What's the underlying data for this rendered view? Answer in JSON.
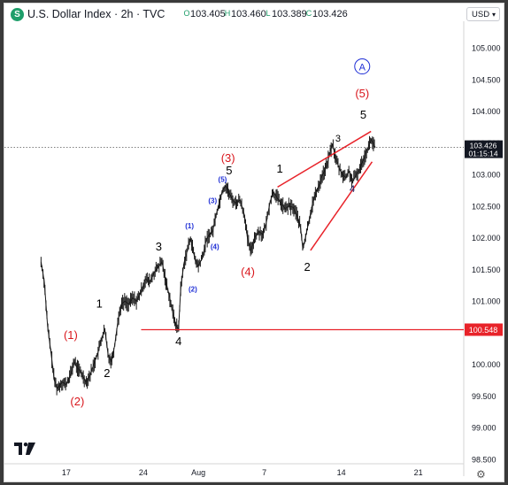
{
  "header": {
    "symbol_icon": "S",
    "title": "U.S. Dollar Index · 2h · TVC",
    "ohlc": [
      {
        "letter": "O",
        "value": "103.405"
      },
      {
        "letter": "H",
        "value": "103.460"
      },
      {
        "letter": "L",
        "value": "103.389"
      },
      {
        "letter": "C",
        "value": "103.426"
      }
    ],
    "currency": "USD"
  },
  "colors": {
    "bull": "#1e9e6a",
    "candle": "#1a1a1a",
    "trend": "#e8232a",
    "label_red": "#d9161c",
    "label_blue": "#1f2fd6",
    "label_black": "#000000",
    "price_tag": "#131722",
    "level_tag": "#e8232a"
  },
  "chart_data": {
    "type": "line",
    "title": "U.S. Dollar Index · 2h · TVC",
    "x_axis": {
      "ticks": [
        {
          "label": "17",
          "x": 0.8
        },
        {
          "label": "24",
          "x": 7.8
        },
        {
          "label": "Aug",
          "x": 12.8
        },
        {
          "label": "7",
          "x": 18.8
        },
        {
          "label": "14",
          "x": 25.8
        },
        {
          "label": "21",
          "x": 32.8
        }
      ]
    },
    "y_axis": {
      "range": [
        98.5,
        105.5
      ],
      "ticks": [
        "105.000",
        "104.500",
        "104.000",
        "103.500",
        "103.000",
        "102.500",
        "102.000",
        "101.500",
        "101.000",
        "100.500",
        "100.000",
        "99.500",
        "99.000",
        "98.500"
      ]
    },
    "price_path": [
      [
        -1.5,
        101.62
      ],
      [
        -1.2,
        101.3
      ],
      [
        -0.9,
        100.6
      ],
      [
        -0.6,
        100.2
      ],
      [
        -0.3,
        99.75
      ],
      [
        0.0,
        99.62
      ],
      [
        0.4,
        99.72
      ],
      [
        0.8,
        99.68
      ],
      [
        1.2,
        99.85
      ],
      [
        1.5,
        100.05
      ],
      [
        1.8,
        99.95
      ],
      [
        2.2,
        99.85
      ],
      [
        2.6,
        99.72
      ],
      [
        3.0,
        99.85
      ],
      [
        3.3,
        100.0
      ],
      [
        3.7,
        100.2
      ],
      [
        4.0,
        100.4
      ],
      [
        4.3,
        100.55
      ],
      [
        4.6,
        100.15
      ],
      [
        4.9,
        100.05
      ],
      [
        5.2,
        100.3
      ],
      [
        5.5,
        100.7
      ],
      [
        5.8,
        100.95
      ],
      [
        6.1,
        101.0
      ],
      [
        6.5,
        100.95
      ],
      [
        6.8,
        101.05
      ],
      [
        7.2,
        101.0
      ],
      [
        7.6,
        101.15
      ],
      [
        8.0,
        101.35
      ],
      [
        8.4,
        101.3
      ],
      [
        8.8,
        101.45
      ],
      [
        9.2,
        101.55
      ],
      [
        9.5,
        101.62
      ],
      [
        9.8,
        101.35
      ],
      [
        10.2,
        101.05
      ],
      [
        10.5,
        100.8
      ],
      [
        10.8,
        100.6
      ],
      [
        11.0,
        100.55
      ],
      [
        11.2,
        101.2
      ],
      [
        11.5,
        101.6
      ],
      [
        11.8,
        101.8
      ],
      [
        12.1,
        102.0
      ],
      [
        12.5,
        101.65
      ],
      [
        12.8,
        101.55
      ],
      [
        13.2,
        101.7
      ],
      [
        13.5,
        101.95
      ],
      [
        13.8,
        102.05
      ],
      [
        14.1,
        102.1
      ],
      [
        14.4,
        102.35
      ],
      [
        14.7,
        102.55
      ],
      [
        15.0,
        102.75
      ],
      [
        15.3,
        102.82
      ],
      [
        15.6,
        102.7
      ],
      [
        15.9,
        102.6
      ],
      [
        16.2,
        102.55
      ],
      [
        16.6,
        102.6
      ],
      [
        17.0,
        102.35
      ],
      [
        17.3,
        101.95
      ],
      [
        17.6,
        101.78
      ],
      [
        17.9,
        102.0
      ],
      [
        18.3,
        102.1
      ],
      [
        18.7,
        102.05
      ],
      [
        19.0,
        102.25
      ],
      [
        19.3,
        102.55
      ],
      [
        19.6,
        102.72
      ],
      [
        19.9,
        102.65
      ],
      [
        20.3,
        102.55
      ],
      [
        20.7,
        102.45
      ],
      [
        21.0,
        102.5
      ],
      [
        21.4,
        102.48
      ],
      [
        21.8,
        102.35
      ],
      [
        22.1,
        102.15
      ],
      [
        22.3,
        101.82
      ],
      [
        22.6,
        102.05
      ],
      [
        22.9,
        102.3
      ],
      [
        23.2,
        102.55
      ],
      [
        23.6,
        102.75
      ],
      [
        24.0,
        102.95
      ],
      [
        24.4,
        103.1
      ],
      [
        24.7,
        103.3
      ],
      [
        25.0,
        103.48
      ],
      [
        25.3,
        103.25
      ],
      [
        25.6,
        103.1
      ],
      [
        25.9,
        103.0
      ],
      [
        26.2,
        102.95
      ],
      [
        26.5,
        103.05
      ],
      [
        26.8,
        102.88
      ],
      [
        27.1,
        102.98
      ],
      [
        27.4,
        103.05
      ],
      [
        27.7,
        103.2
      ],
      [
        28.0,
        103.32
      ],
      [
        28.3,
        103.45
      ],
      [
        28.5,
        103.55
      ],
      [
        28.7,
        103.48
      ],
      [
        28.9,
        103.426
      ]
    ],
    "last_price": {
      "label": "103.426",
      "countdown": "01:15:14",
      "value": 103.426
    },
    "level": {
      "label": "100.548",
      "value": 100.548,
      "x0": 7.6
    },
    "trendlines": [
      {
        "x0": 20.0,
        "y0": 102.8,
        "x1": 28.5,
        "y1": 103.68
      },
      {
        "x0": 23.0,
        "y0": 101.8,
        "x1": 28.6,
        "y1": 103.2
      }
    ],
    "wave_labels": [
      {
        "text": "(1)",
        "x": 1.2,
        "y": 100.4,
        "color": "red",
        "size": 13
      },
      {
        "text": "(2)",
        "x": 1.8,
        "y": 99.35,
        "color": "red",
        "size": 13
      },
      {
        "text": "1",
        "x": 3.8,
        "y": 100.9,
        "color": "black",
        "size": 13
      },
      {
        "text": "2",
        "x": 4.5,
        "y": 99.8,
        "color": "black",
        "size": 13
      },
      {
        "text": "3",
        "x": 9.2,
        "y": 101.8,
        "color": "black",
        "size": 13
      },
      {
        "text": "4",
        "x": 11.0,
        "y": 100.3,
        "color": "black",
        "size": 13
      },
      {
        "text": "(1)",
        "x": 12.0,
        "y": 102.15,
        "color": "blue",
        "size": 8
      },
      {
        "text": "(2)",
        "x": 12.3,
        "y": 101.15,
        "color": "blue",
        "size": 8
      },
      {
        "text": "(3)",
        "x": 14.1,
        "y": 102.55,
        "color": "blue",
        "size": 8
      },
      {
        "text": "(4)",
        "x": 14.3,
        "y": 101.82,
        "color": "blue",
        "size": 8
      },
      {
        "text": "(5)",
        "x": 15.0,
        "y": 102.88,
        "color": "blue",
        "size": 8
      },
      {
        "text": "(3)",
        "x": 15.5,
        "y": 103.2,
        "color": "red",
        "size": 13
      },
      {
        "text": "5",
        "x": 15.6,
        "y": 103.0,
        "color": "black",
        "size": 13
      },
      {
        "text": "(4)",
        "x": 17.3,
        "y": 101.4,
        "color": "red",
        "size": 13
      },
      {
        "text": "1",
        "x": 20.2,
        "y": 103.03,
        "color": "black",
        "size": 13
      },
      {
        "text": "2",
        "x": 22.7,
        "y": 101.48,
        "color": "black",
        "size": 13
      },
      {
        "text": "3",
        "x": 25.5,
        "y": 103.52,
        "color": "black",
        "size": 11
      },
      {
        "text": "4",
        "x": 26.8,
        "y": 102.72,
        "color": "blue_black",
        "size": 11
      },
      {
        "text": "5",
        "x": 27.8,
        "y": 103.88,
        "color": "black",
        "size": 13
      },
      {
        "text": "(5)",
        "x": 27.7,
        "y": 104.22,
        "color": "red",
        "size": 13
      }
    ],
    "circle_label": {
      "text": "A",
      "x": 27.7,
      "y": 104.65
    }
  }
}
